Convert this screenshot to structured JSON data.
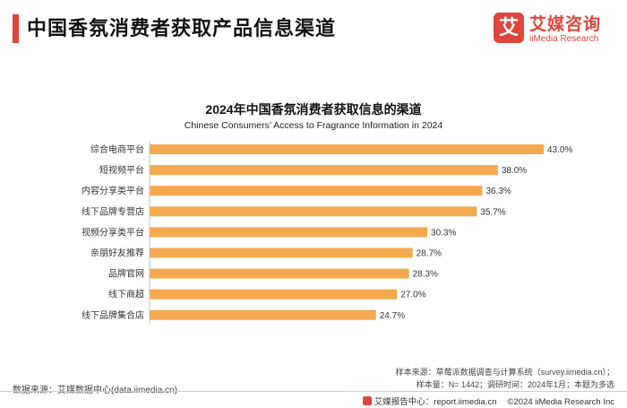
{
  "header": {
    "title": "中国香氛消费者获取产品信息渠道",
    "logo_mark": "艾",
    "logo_cn": "艾媒咨询",
    "logo_en": "iiMedia Research"
  },
  "chart_data": {
    "type": "bar",
    "orientation": "horizontal",
    "title": "2024年中国香氛消费者获取信息的渠道",
    "subtitle": "Chinese Consumers’ Access to Fragrance Information in 2024",
    "categories": [
      "综合电商平台",
      "短视频平台",
      "内容分享类平台",
      "线下品牌专营店",
      "视频分享类平台",
      "亲朋好友推荐",
      "品牌官网",
      "线下商超",
      "线下品牌集合店"
    ],
    "values": [
      43.0,
      38.0,
      36.3,
      35.7,
      30.3,
      28.7,
      28.3,
      27.0,
      24.7
    ],
    "value_labels": [
      "43.0%",
      "38.0%",
      "36.3%",
      "35.7%",
      "30.3%",
      "28.7%",
      "28.3%",
      "27.0%",
      "24.7%"
    ],
    "xlim": [
      0,
      43.0
    ],
    "bar_color": "#f4a94e",
    "grid": false
  },
  "footer": {
    "sample_source": "样本来源：草莓派数据调查与计算系统（survey.iimedia.cn）；",
    "sample_info": "样本量：N= 1442；调研时间：2024年1月；本题为多选",
    "data_source": "数据来源：艾媒数据中心(data.iimedia.cn)",
    "report_center": "艾媒报告中心：report.iimedia.cn",
    "copyright": "©2024  iiMedia Research  Inc"
  }
}
